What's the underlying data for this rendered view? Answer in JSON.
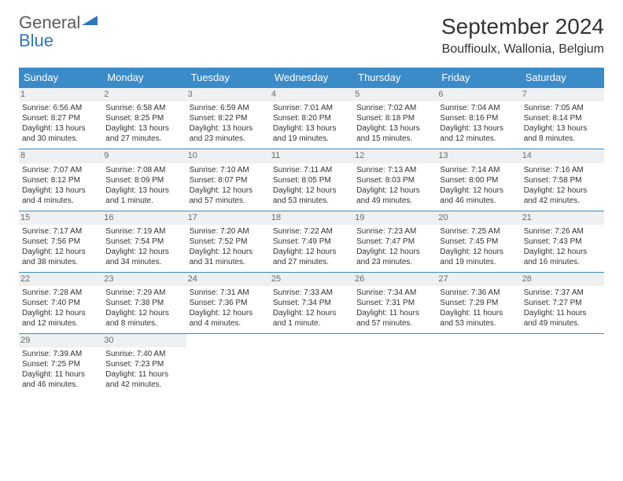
{
  "brand": {
    "name": "General",
    "sub": "Blue",
    "name_color": "#5a5a5a",
    "sub_color": "#2f77bd",
    "tri_color": "#2f77bd"
  },
  "title": "September 2024",
  "location": "Bouffioulx, Wallonia, Belgium",
  "style": {
    "header_bg": "#3b8bc8",
    "header_text": "#ffffff",
    "row_border": "#3b8bc8",
    "daynum_bg": "#eef0f1",
    "daynum_color": "#6b6b6b",
    "cell_text": "#333333"
  },
  "daynames": [
    "Sunday",
    "Monday",
    "Tuesday",
    "Wednesday",
    "Thursday",
    "Friday",
    "Saturday"
  ],
  "weeks": [
    [
      {
        "n": "1",
        "sr": "6:56 AM",
        "ss": "8:27 PM",
        "dl": "13 hours and 30 minutes."
      },
      {
        "n": "2",
        "sr": "6:58 AM",
        "ss": "8:25 PM",
        "dl": "13 hours and 27 minutes."
      },
      {
        "n": "3",
        "sr": "6:59 AM",
        "ss": "8:22 PM",
        "dl": "13 hours and 23 minutes."
      },
      {
        "n": "4",
        "sr": "7:01 AM",
        "ss": "8:20 PM",
        "dl": "13 hours and 19 minutes."
      },
      {
        "n": "5",
        "sr": "7:02 AM",
        "ss": "8:18 PM",
        "dl": "13 hours and 15 minutes."
      },
      {
        "n": "6",
        "sr": "7:04 AM",
        "ss": "8:16 PM",
        "dl": "13 hours and 12 minutes."
      },
      {
        "n": "7",
        "sr": "7:05 AM",
        "ss": "8:14 PM",
        "dl": "13 hours and 8 minutes."
      }
    ],
    [
      {
        "n": "8",
        "sr": "7:07 AM",
        "ss": "8:12 PM",
        "dl": "13 hours and 4 minutes."
      },
      {
        "n": "9",
        "sr": "7:08 AM",
        "ss": "8:09 PM",
        "dl": "13 hours and 1 minute."
      },
      {
        "n": "10",
        "sr": "7:10 AM",
        "ss": "8:07 PM",
        "dl": "12 hours and 57 minutes."
      },
      {
        "n": "11",
        "sr": "7:11 AM",
        "ss": "8:05 PM",
        "dl": "12 hours and 53 minutes."
      },
      {
        "n": "12",
        "sr": "7:13 AM",
        "ss": "8:03 PM",
        "dl": "12 hours and 49 minutes."
      },
      {
        "n": "13",
        "sr": "7:14 AM",
        "ss": "8:00 PM",
        "dl": "12 hours and 46 minutes."
      },
      {
        "n": "14",
        "sr": "7:16 AM",
        "ss": "7:58 PM",
        "dl": "12 hours and 42 minutes."
      }
    ],
    [
      {
        "n": "15",
        "sr": "7:17 AM",
        "ss": "7:56 PM",
        "dl": "12 hours and 38 minutes."
      },
      {
        "n": "16",
        "sr": "7:19 AM",
        "ss": "7:54 PM",
        "dl": "12 hours and 34 minutes."
      },
      {
        "n": "17",
        "sr": "7:20 AM",
        "ss": "7:52 PM",
        "dl": "12 hours and 31 minutes."
      },
      {
        "n": "18",
        "sr": "7:22 AM",
        "ss": "7:49 PM",
        "dl": "12 hours and 27 minutes."
      },
      {
        "n": "19",
        "sr": "7:23 AM",
        "ss": "7:47 PM",
        "dl": "12 hours and 23 minutes."
      },
      {
        "n": "20",
        "sr": "7:25 AM",
        "ss": "7:45 PM",
        "dl": "12 hours and 19 minutes."
      },
      {
        "n": "21",
        "sr": "7:26 AM",
        "ss": "7:43 PM",
        "dl": "12 hours and 16 minutes."
      }
    ],
    [
      {
        "n": "22",
        "sr": "7:28 AM",
        "ss": "7:40 PM",
        "dl": "12 hours and 12 minutes."
      },
      {
        "n": "23",
        "sr": "7:29 AM",
        "ss": "7:38 PM",
        "dl": "12 hours and 8 minutes."
      },
      {
        "n": "24",
        "sr": "7:31 AM",
        "ss": "7:36 PM",
        "dl": "12 hours and 4 minutes."
      },
      {
        "n": "25",
        "sr": "7:33 AM",
        "ss": "7:34 PM",
        "dl": "12 hours and 1 minute."
      },
      {
        "n": "26",
        "sr": "7:34 AM",
        "ss": "7:31 PM",
        "dl": "11 hours and 57 minutes."
      },
      {
        "n": "27",
        "sr": "7:36 AM",
        "ss": "7:29 PM",
        "dl": "11 hours and 53 minutes."
      },
      {
        "n": "28",
        "sr": "7:37 AM",
        "ss": "7:27 PM",
        "dl": "11 hours and 49 minutes."
      }
    ],
    [
      {
        "n": "29",
        "sr": "7:39 AM",
        "ss": "7:25 PM",
        "dl": "11 hours and 46 minutes."
      },
      {
        "n": "30",
        "sr": "7:40 AM",
        "ss": "7:23 PM",
        "dl": "11 hours and 42 minutes."
      },
      null,
      null,
      null,
      null,
      null
    ]
  ],
  "labels": {
    "sunrise": "Sunrise: ",
    "sunset": "Sunset: ",
    "daylight": "Daylight: "
  }
}
